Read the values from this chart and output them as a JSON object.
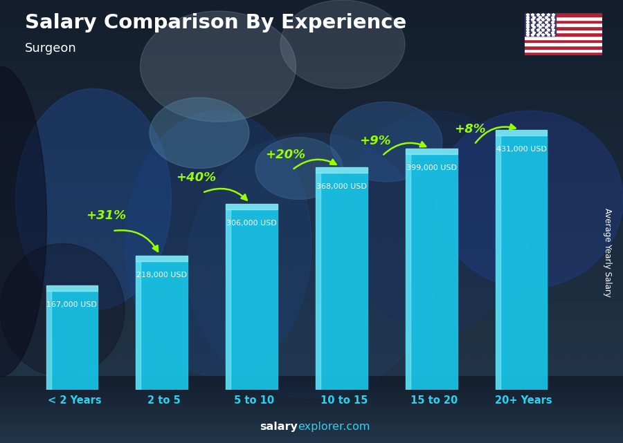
{
  "title": "Salary Comparison By Experience",
  "subtitle": "Surgeon",
  "ylabel": "Average Yearly Salary",
  "categories": [
    "< 2 Years",
    "2 to 5",
    "5 to 10",
    "10 to 15",
    "15 to 20",
    "20+ Years"
  ],
  "values": [
    167000,
    218000,
    306000,
    368000,
    399000,
    431000
  ],
  "value_labels": [
    "167,000 USD",
    "218,000 USD",
    "306,000 USD",
    "368,000 USD",
    "399,000 USD",
    "431,000 USD"
  ],
  "pct_changes": [
    "+31%",
    "+40%",
    "+20%",
    "+9%",
    "+8%"
  ],
  "bar_main_color": "#18C5E8",
  "bar_left_color": "#5DE0F5",
  "bar_top_color": "#7EEAF8",
  "bg_top_color": "#2a3a4a",
  "bg_bottom_color": "#1a2535",
  "pct_color": "#99FF00",
  "arrow_color": "#99FF00",
  "value_color": "#ffffff",
  "title_color": "#ffffff",
  "subtitle_color": "#ffffff",
  "xlabel_color": "#29D4F0",
  "watermark_salary_color": "#ffffff",
  "watermark_explorer_color": "#29D4F0"
}
